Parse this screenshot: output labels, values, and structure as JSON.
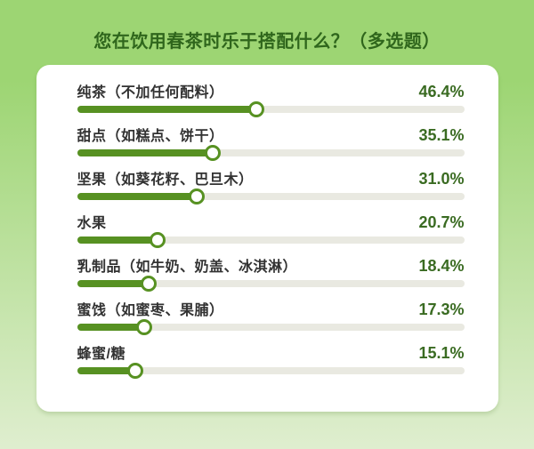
{
  "header": {
    "title": "您在饮用春茶时乐于搭配什么？（多选题）"
  },
  "colors": {
    "bg_top": "#9dd573",
    "bg_bottom": "#dfeecf",
    "title": "#2f661c",
    "card_bg": "#ffffff",
    "label": "#323232",
    "percent": "#3a6b22",
    "bar_fill": "#579122",
    "bar_track": "#e9e9e1",
    "knob_fill": "#ffffff",
    "knob_border": "#579122"
  },
  "chart_data": {
    "type": "bar",
    "orientation": "horizontal",
    "title": "您在饮用春茶时乐于搭配什么？（多选题）",
    "categories": [
      "纯茶（不加任何配料）",
      "甜点（如糕点、饼干）",
      "坚果（如葵花籽、巴旦木）",
      "水果",
      "乳制品（如牛奶、奶盖、冰淇淋）",
      "蜜饯（如蜜枣、果脯）",
      "蜂蜜/糖"
    ],
    "values": [
      46.4,
      35.1,
      31.0,
      20.7,
      18.4,
      17.3,
      15.1
    ],
    "value_labels": [
      "46.4%",
      "35.1%",
      "31.0%",
      "20.7%",
      "18.4%",
      "17.3%",
      "15.1%"
    ],
    "unit": "%",
    "xlim": [
      0,
      100
    ],
    "grid": false,
    "legend_position": "none"
  }
}
